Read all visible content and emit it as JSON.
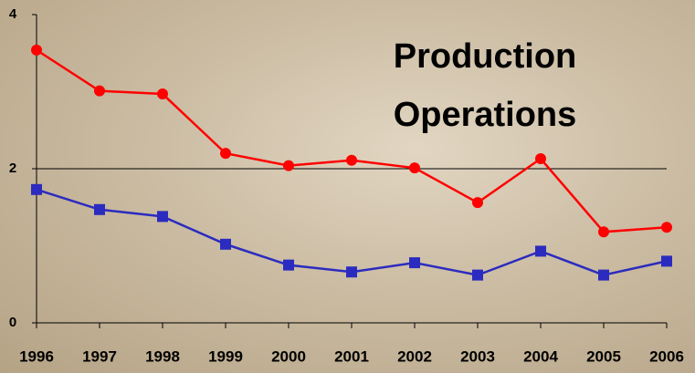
{
  "chart_data": {
    "type": "line",
    "title": "Production Operations",
    "x": [
      "1996",
      "1997",
      "1998",
      "1999",
      "2000",
      "2001",
      "2002",
      "2003",
      "2004",
      "2005",
      "2006"
    ],
    "series": [
      {
        "color": "#ff0000",
        "marker": "circle",
        "values": [
          3.54,
          3.01,
          2.97,
          2.2,
          2.04,
          2.11,
          2.01,
          1.56,
          2.13,
          1.18,
          1.24
        ]
      },
      {
        "color": "#2b2bbf",
        "marker": "square",
        "values": [
          1.73,
          1.47,
          1.38,
          1.02,
          0.75,
          0.66,
          0.78,
          0.62,
          0.93,
          0.62,
          0.8
        ]
      }
    ],
    "ylim": [
      0,
      4
    ],
    "yticks": [
      0,
      2,
      4
    ],
    "grid": true
  }
}
